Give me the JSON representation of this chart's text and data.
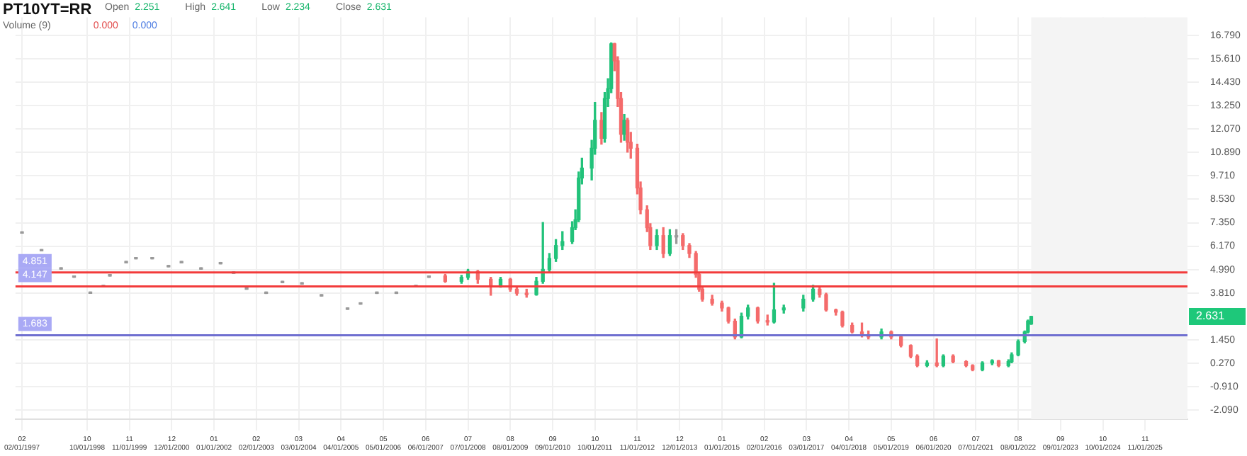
{
  "chart_data": {
    "type": "candlestick",
    "title": "PT10YT=RR",
    "annotations": [
      "Open",
      "2.251",
      "High",
      "2.641",
      "Low",
      "2.234",
      "Close",
      "2.631",
      "Volume (9)",
      "0.000",
      "0.000",
      "2.631"
    ],
    "x": [
      "1997-02",
      "1997-08",
      "1998-02",
      "1998-06",
      "1998-11",
      "1999-03",
      "1999-05",
      "1999-10",
      "2000-01",
      "2000-06",
      "2000-11",
      "2001-03",
      "2001-09",
      "2002-03",
      "2002-07",
      "2002-11",
      "2003-05",
      "2003-10",
      "2004-04",
      "2004-10",
      "2005-06",
      "2005-10",
      "2006-03",
      "2006-09",
      "2007-03",
      "2007-07",
      "2007-12",
      "2008-05",
      "2008-07",
      "2008-10",
      "2009-02",
      "2009-05",
      "2009-08",
      "2009-10",
      "2010-01",
      "2010-04",
      "2010-06",
      "2010-08",
      "2010-10",
      "2010-12",
      "2011-03",
      "2011-04",
      "2011-05",
      "2011-06",
      "2011-09",
      "2011-10",
      "2011-12",
      "2012-01",
      "2012-02",
      "2012-03",
      "2012-04",
      "2012-05",
      "2012-06",
      "2012-07",
      "2012-08",
      "2012-09",
      "2012-11",
      "2012-12",
      "2013-02",
      "2013-03",
      "2013-05",
      "2013-07",
      "2013-09",
      "2013-11",
      "2014-01",
      "2014-03",
      "2014-05",
      "2014-06",
      "2014-07",
      "2014-10",
      "2015-01",
      "2015-03",
      "2015-05",
      "2015-07",
      "2015-09",
      "2015-12",
      "2016-03",
      "2016-05",
      "2016-08",
      "2017-02",
      "2017-05",
      "2017-07",
      "2017-09",
      "2017-12",
      "2018-02",
      "2018-05",
      "2018-08",
      "2018-10",
      "2019-02",
      "2019-05",
      "2019-08",
      "2019-11",
      "2020-01",
      "2020-04",
      "2020-07",
      "2020-09",
      "2020-12",
      "2021-04",
      "2021-06",
      "2021-09",
      "2021-12",
      "2022-02",
      "2022-05",
      "2022-06",
      "2022-08",
      "2022-10",
      "2022-11",
      "2022-12"
    ],
    "ohlc": [
      [
        6.89,
        6.89,
        6.89,
        6.89
      ],
      [
        6.0,
        6.0,
        6.0,
        6.0
      ],
      [
        5.08,
        5.08,
        5.08,
        5.08
      ],
      [
        4.67,
        4.67,
        4.67,
        4.67
      ],
      [
        3.86,
        3.86,
        3.86,
        3.86
      ],
      [
        4.2,
        4.2,
        4.2,
        4.2
      ],
      [
        4.74,
        4.74,
        4.74,
        4.74
      ],
      [
        5.4,
        5.4,
        5.4,
        5.4
      ],
      [
        5.6,
        5.6,
        5.6,
        5.6
      ],
      [
        5.6,
        5.6,
        5.6,
        5.6
      ],
      [
        5.2,
        5.2,
        5.2,
        5.2
      ],
      [
        5.4,
        5.4,
        5.4,
        5.4
      ],
      [
        5.08,
        5.08,
        5.08,
        5.08
      ],
      [
        5.35,
        5.35,
        5.35,
        5.35
      ],
      [
        4.87,
        4.87,
        4.87,
        4.87
      ],
      [
        4.07,
        4.07,
        4.07,
        4.07
      ],
      [
        3.86,
        3.86,
        3.86,
        3.86
      ],
      [
        4.4,
        4.4,
        4.4,
        4.4
      ],
      [
        4.33,
        4.33,
        4.33,
        4.33
      ],
      [
        3.73,
        3.73,
        3.73,
        3.73
      ],
      [
        3.06,
        3.06,
        3.06,
        3.06
      ],
      [
        3.32,
        3.32,
        3.32,
        3.32
      ],
      [
        3.86,
        3.86,
        3.86,
        3.86
      ],
      [
        3.86,
        3.86,
        3.86,
        3.86
      ],
      [
        4.2,
        4.2,
        4.2,
        4.2
      ],
      [
        4.67,
        4.67,
        4.67,
        4.67
      ],
      [
        4.67,
        4.75,
        4.35,
        4.4
      ],
      [
        4.4,
        4.7,
        4.3,
        4.6
      ],
      [
        4.6,
        5.0,
        4.5,
        4.9
      ],
      [
        4.9,
        4.95,
        4.3,
        4.5
      ],
      [
        4.5,
        4.6,
        3.7,
        4.2
      ],
      [
        4.2,
        4.6,
        4.1,
        4.5
      ],
      [
        4.5,
        4.55,
        3.9,
        4.0
      ],
      [
        4.0,
        4.1,
        3.7,
        3.8
      ],
      [
        3.8,
        4.0,
        3.6,
        3.73
      ],
      [
        3.73,
        4.6,
        3.7,
        4.4
      ],
      [
        4.4,
        7.36,
        4.3,
        5.0
      ],
      [
        5.0,
        5.8,
        4.9,
        5.55
      ],
      [
        5.55,
        6.5,
        5.4,
        6.2
      ],
      [
        6.2,
        6.9,
        6.0,
        6.4
      ],
      [
        6.4,
        7.4,
        6.3,
        7.1
      ],
      [
        7.1,
        8.0,
        7.0,
        7.5
      ],
      [
        7.5,
        9.9,
        7.4,
        9.6
      ],
      [
        9.6,
        10.6,
        9.3,
        10.1
      ],
      [
        10.1,
        11.5,
        9.5,
        11.1
      ],
      [
        11.1,
        13.4,
        10.8,
        12.5
      ],
      [
        12.5,
        12.9,
        11.3,
        11.6
      ],
      [
        11.6,
        13.9,
        11.4,
        13.6
      ],
      [
        13.6,
        14.6,
        13.2,
        14.1
      ],
      [
        14.1,
        16.4,
        13.9,
        16.35
      ],
      [
        16.35,
        16.38,
        15.0,
        15.5
      ],
      [
        15.5,
        15.7,
        13.2,
        13.6
      ],
      [
        13.6,
        13.9,
        11.4,
        11.8
      ],
      [
        11.8,
        12.8,
        11.5,
        12.5
      ],
      [
        12.5,
        12.6,
        10.9,
        11.4
      ],
      [
        11.4,
        11.9,
        10.6,
        11.1
      ],
      [
        11.1,
        11.3,
        8.8,
        9.1
      ],
      [
        9.1,
        9.4,
        7.8,
        8.0
      ],
      [
        8.0,
        8.2,
        6.9,
        7.1
      ],
      [
        7.1,
        7.3,
        6.0,
        6.2
      ],
      [
        6.2,
        7.0,
        6.0,
        6.7
      ],
      [
        6.7,
        7.1,
        5.6,
        5.8
      ],
      [
        5.8,
        7.0,
        5.7,
        6.7
      ],
      [
        6.7,
        7.0,
        6.3,
        6.7
      ],
      [
        6.7,
        6.8,
        6.0,
        6.2
      ],
      [
        6.2,
        6.3,
        5.6,
        5.8
      ],
      [
        5.8,
        5.9,
        4.6,
        4.74
      ],
      [
        4.74,
        4.8,
        3.9,
        4.0
      ],
      [
        4.0,
        4.1,
        3.4,
        3.5
      ],
      [
        3.5,
        3.7,
        3.2,
        3.3
      ],
      [
        3.3,
        3.4,
        2.9,
        3.06
      ],
      [
        3.06,
        3.1,
        2.3,
        2.39
      ],
      [
        2.39,
        2.5,
        1.5,
        1.6
      ],
      [
        1.6,
        2.8,
        1.55,
        2.64
      ],
      [
        2.64,
        3.2,
        2.5,
        3.06
      ],
      [
        3.06,
        3.1,
        2.3,
        2.4
      ],
      [
        2.4,
        2.7,
        2.2,
        2.35
      ],
      [
        2.35,
        4.3,
        2.3,
        2.96
      ],
      [
        2.96,
        3.2,
        2.8,
        3.06
      ],
      [
        3.06,
        3.7,
        2.9,
        3.5
      ],
      [
        3.5,
        4.2,
        3.4,
        4.0
      ],
      [
        4.0,
        4.1,
        3.6,
        3.73
      ],
      [
        3.73,
        3.8,
        2.9,
        2.96
      ],
      [
        2.96,
        3.0,
        2.7,
        2.85
      ],
      [
        2.85,
        2.9,
        2.1,
        2.18
      ],
      [
        2.18,
        2.3,
        1.8,
        1.85
      ],
      [
        1.85,
        2.3,
        1.6,
        1.7
      ],
      [
        1.7,
        1.9,
        1.5,
        1.6
      ],
      [
        1.6,
        2.0,
        1.5,
        1.85
      ],
      [
        1.85,
        1.9,
        1.5,
        1.6
      ],
      [
        1.6,
        1.7,
        1.1,
        1.17
      ],
      [
        1.17,
        1.2,
        0.55,
        0.63
      ],
      [
        0.63,
        0.7,
        0.1,
        0.16
      ],
      [
        0.16,
        0.4,
        0.1,
        0.29
      ],
      [
        0.29,
        1.5,
        0.1,
        0.16
      ],
      [
        0.16,
        0.7,
        0.1,
        0.63
      ],
      [
        0.63,
        0.7,
        0.3,
        0.36
      ],
      [
        0.36,
        0.4,
        0.1,
        0.16
      ],
      [
        0.16,
        0.2,
        -0.1,
        -0.05
      ],
      [
        -0.05,
        0.35,
        -0.1,
        0.29
      ],
      [
        0.29,
        0.45,
        0.2,
        0.4
      ],
      [
        0.4,
        0.42,
        0.1,
        0.16
      ],
      [
        0.16,
        0.45,
        0.1,
        0.36
      ],
      [
        0.36,
        0.8,
        0.3,
        0.7
      ],
      [
        0.7,
        1.45,
        0.65,
        1.37
      ],
      [
        1.37,
        1.9,
        1.3,
        1.85
      ],
      [
        1.85,
        2.45,
        1.8,
        2.4
      ],
      [
        2.251,
        2.641,
        2.234,
        2.631
      ]
    ],
    "xlim": [
      "1996-12",
      "2026-12"
    ],
    "xticks": [
      {
        "value": "1997-02",
        "label": "02\n02/01/1997"
      },
      {
        "value": "1998-10",
        "label": "10\n10/01/1998"
      },
      {
        "value": "1999-11",
        "label": "11\n11/01/1999"
      },
      {
        "value": "2000-12",
        "label": "12\n12/01/2000"
      },
      {
        "value": "2002-01",
        "label": "01\n01/01/2002"
      },
      {
        "value": "2003-02",
        "label": "02\n02/01/2003"
      },
      {
        "value": "2004-03",
        "label": "03\n03/01/2004"
      },
      {
        "value": "2005-04",
        "label": "04\n04/01/2005"
      },
      {
        "value": "2006-05",
        "label": "05\n05/01/2006"
      },
      {
        "value": "2007-06",
        "label": "06\n06/01/2007"
      },
      {
        "value": "2008-07",
        "label": "07\n07/01/2008"
      },
      {
        "value": "2009-08",
        "label": "08\n08/01/2009"
      },
      {
        "value": "2010-09",
        "label": "09\n09/01/2010"
      },
      {
        "value": "2011-10",
        "label": "10\n10/01/2011"
      },
      {
        "value": "2012-11",
        "label": "11\n11/01/2012"
      },
      {
        "value": "2013-12",
        "label": "12\n12/01/2013"
      },
      {
        "value": "2015-01",
        "label": "01\n01/01/2015"
      },
      {
        "value": "2016-02",
        "label": "02\n02/01/2016"
      },
      {
        "value": "2017-03",
        "label": "03\n03/01/2017"
      },
      {
        "value": "2018-04",
        "label": "04\n04/01/2018"
      },
      {
        "value": "2019-05",
        "label": "05\n05/01/2019"
      },
      {
        "value": "2020-06",
        "label": "06\n06/01/2020"
      },
      {
        "value": "2021-07",
        "label": "07\n07/01/2021"
      },
      {
        "value": "2022-08",
        "label": "08\n08/01/2022"
      },
      {
        "value": "2023-09",
        "label": "09\n09/01/2023"
      },
      {
        "value": "2024-10",
        "label": "10\n10/01/2024"
      },
      {
        "value": "2025-11",
        "label": "11\n11/01/2025"
      }
    ],
    "ylim": [
      -2.54,
      17.69
    ],
    "yticks": [
      {
        "value": 16.79,
        "label": "16.790"
      },
      {
        "value": 15.61,
        "label": "15.610"
      },
      {
        "value": 14.43,
        "label": "14.430"
      },
      {
        "value": 13.25,
        "label": "13.250"
      },
      {
        "value": 12.07,
        "label": "12.070"
      },
      {
        "value": 10.89,
        "label": "10.890"
      },
      {
        "value": 9.71,
        "label": "9.710"
      },
      {
        "value": 8.53,
        "label": "8.530"
      },
      {
        "value": 7.35,
        "label": "7.350"
      },
      {
        "value": 6.17,
        "label": "6.170"
      },
      {
        "value": 4.99,
        "label": "4.990"
      },
      {
        "value": 3.81,
        "label": "3.810"
      },
      {
        "value": 1.45,
        "label": "1.450"
      },
      {
        "value": 0.27,
        "label": "0.270"
      },
      {
        "value": -0.91,
        "label": "-0.910"
      },
      {
        "value": -2.09,
        "label": "-2.090"
      }
    ],
    "ref_lines": [
      {
        "axis": "y",
        "value": 4.851,
        "label": "4.851",
        "color": "#f23b3b"
      },
      {
        "axis": "y",
        "value": 4.147,
        "label": "4.147",
        "color": "#f23b3b"
      },
      {
        "axis": "y",
        "value": 1.683,
        "label": "1.683",
        "color": "#6f6fd0"
      }
    ],
    "bands": [
      {
        "axis": "x",
        "from": "2022-12",
        "to": "2026-12",
        "color": "#f4f4f4"
      }
    ],
    "grid": true,
    "legend": false
  }
}
